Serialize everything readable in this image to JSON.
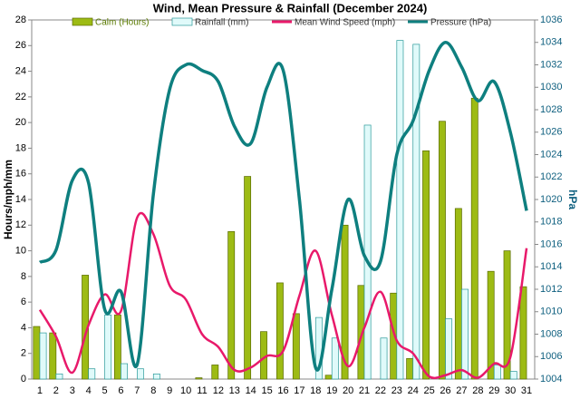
{
  "chart_data": {
    "type": "bar-line",
    "title": "Wind, Mean Pressure & Rainfall (December 2024)",
    "y_label": "Hours/mph/mm",
    "y2_label": "hPa",
    "categories": [
      "1",
      "2",
      "3",
      "4",
      "5",
      "6",
      "7",
      "8",
      "9",
      "10",
      "11",
      "12",
      "13",
      "14",
      "15",
      "16",
      "17",
      "18",
      "19",
      "20",
      "21",
      "22",
      "23",
      "24",
      "25",
      "26",
      "27",
      "28",
      "29",
      "30",
      "31"
    ],
    "series": [
      {
        "name": "Calm (Hours)",
        "kind": "bar",
        "color": "#9dbb14",
        "values": [
          4.1,
          3.6,
          0,
          8.1,
          0,
          5.0,
          0,
          0,
          0,
          0,
          0.1,
          1.1,
          11.5,
          15.8,
          3.7,
          7.5,
          5.1,
          0,
          0.3,
          12.0,
          7.3,
          0,
          6.7,
          1.6,
          17.8,
          20.1,
          13.3,
          21.9,
          8.4,
          10.0,
          7.2
        ]
      },
      {
        "name": "Rainfall (mm)",
        "kind": "bar",
        "color": "#e0fafa",
        "values": [
          3.6,
          0.4,
          0,
          0.8,
          5.0,
          1.2,
          0.8,
          0.4,
          0,
          0,
          0,
          0,
          0,
          0,
          0,
          0,
          0,
          4.8,
          3.2,
          0,
          19.8,
          3.2,
          26.4,
          26.1,
          0,
          4.7,
          7.0,
          0,
          1.1,
          0.6,
          0
        ]
      },
      {
        "name": "Mean Wind Speed (mph)",
        "kind": "line",
        "color": "#e8196a",
        "values": [
          5.4,
          3.3,
          0.5,
          4.2,
          6.6,
          5.3,
          12.6,
          11.3,
          7.3,
          6.2,
          3.5,
          2.5,
          0.7,
          0.9,
          1.8,
          2.2,
          6.5,
          10.0,
          5.0,
          1.0,
          4.0,
          6.8,
          3.0,
          2.0,
          0.2,
          0.3,
          0.7,
          0.1,
          1.2,
          1.7,
          10.2
        ]
      },
      {
        "name": "Pressure (hPa)",
        "kind": "line",
        "axis": "y2",
        "color": "#0e7f7f",
        "values": [
          1014.4,
          1015.5,
          1021.7,
          1021.5,
          1010.2,
          1011.8,
          1005.3,
          1020.5,
          1029.8,
          1032,
          1031.5,
          1030.5,
          1026.5,
          1025,
          1030,
          1031.5,
          1020,
          1005,
          1012,
          1020,
          1015,
          1014.5,
          1024,
          1027,
          1031.5,
          1034,
          1031.8,
          1028.8,
          1030.5,
          1026,
          1019
        ]
      }
    ],
    "ylim": [
      0,
      28
    ],
    "yticks": [
      0,
      2,
      4,
      6,
      8,
      10,
      12,
      14,
      16,
      18,
      20,
      22,
      24,
      26,
      28
    ],
    "y2lim": [
      1004,
      1036
    ],
    "y2ticks": [
      1004,
      1006,
      1008,
      1010,
      1012,
      1014,
      1016,
      1018,
      1020,
      1022,
      1024,
      1026,
      1028,
      1030,
      1032,
      1034,
      1036
    ],
    "legend": "top"
  }
}
